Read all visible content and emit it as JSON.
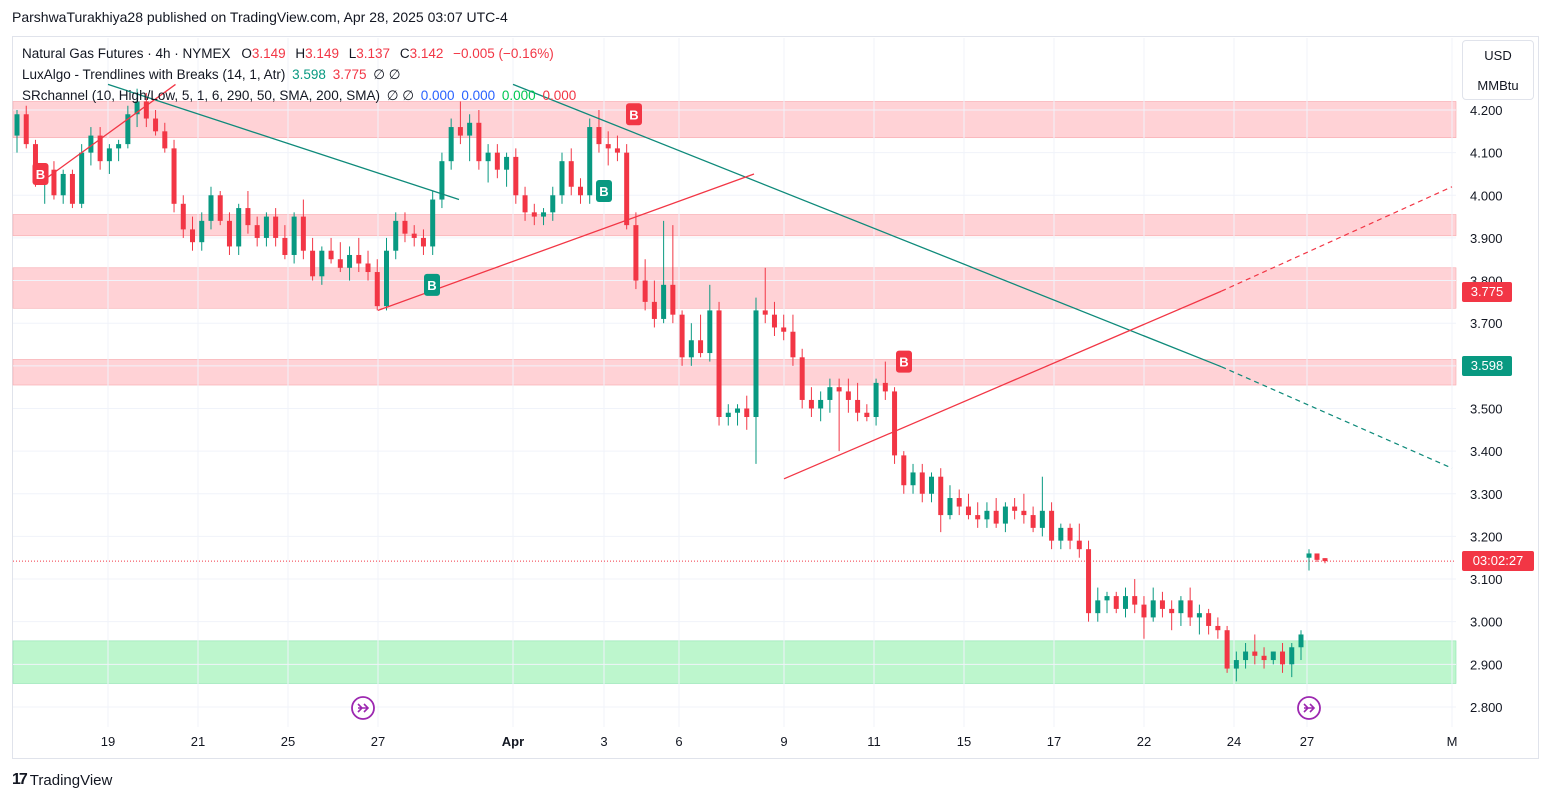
{
  "published": "ParshwaTurakhiya28 published on TradingView.com, Apr 28, 2025 03:07 UTC-4",
  "legend": {
    "symbol": "Natural Gas Futures · 4h · NYMEX",
    "o_label": "O",
    "o_value": "3.149",
    "h_label": "H",
    "h_value": "3.149",
    "l_label": "L",
    "l_value": "3.137",
    "c_label": "C",
    "c_value": "3.142",
    "change": "−0.005 (−0.16%)",
    "indicator1_name": "LuxAlgo - Trendlines with Breaks (14, 1, Atr)",
    "indicator1_v1": "3.598",
    "indicator1_v2": "3.775",
    "indicator1_v3": "∅ ∅",
    "indicator2_name": "SRchannel (10, High/Low, 5, 1, 6, 290, 50, SMA, 200, SMA)",
    "indicator2_v0": "∅ ∅",
    "indicator2_v1": "0.000",
    "indicator2_v2": "0.000",
    "indicator2_v3": "0.000",
    "indicator2_v4": "0.000"
  },
  "units": {
    "currency": "USD",
    "unit": "MMBtu"
  },
  "price_labels": {
    "res": "3.775",
    "sup": "3.598",
    "countdown": "03:02:27"
  },
  "footer": {
    "brand": "TradingView"
  },
  "colors": {
    "up": "#089981",
    "down": "#f23645",
    "resZone": "#ffcdd2",
    "supZone": "#b9f6ca"
  },
  "chart_data": {
    "type": "candlestick",
    "title": "Natural Gas Futures · 4h · NYMEX",
    "ylim": [
      2.75,
      4.25
    ],
    "y_ticks": [
      "4.200",
      "4.100",
      "4.000",
      "3.900",
      "3.800",
      "3.700",
      "3.600",
      "3.500",
      "3.400",
      "3.300",
      "3.200",
      "3.100",
      "3.000",
      "2.900",
      "2.800"
    ],
    "x_ticks": [
      "19",
      "21",
      "25",
      "27",
      "Apr",
      "3",
      "6",
      "9",
      "11",
      "15",
      "17",
      "22",
      "24",
      "27",
      "M"
    ],
    "current_price": 3.142,
    "resistance_zones": [
      [
        4.135,
        4.22
      ],
      [
        3.905,
        3.955
      ],
      [
        3.735,
        3.83
      ],
      [
        3.555,
        3.615
      ]
    ],
    "support_zones": [
      [
        2.855,
        2.955
      ]
    ],
    "trendlines_down": [
      {
        "from": [
          "Mar 19",
          4.26
        ],
        "to": [
          "Mar 30",
          3.99
        ]
      },
      {
        "from": [
          "Apr 1",
          4.26
        ],
        "to": [
          "Apr 24",
          3.598
        ],
        "extension_to": [
          "May 1",
          3.36
        ]
      }
    ],
    "trendlines_up": [
      {
        "from": [
          "Mar 17",
          4.03
        ],
        "to": [
          "Mar 21",
          4.26
        ]
      },
      {
        "from": [
          "Mar 27",
          3.73
        ],
        "to": [
          "Apr 8",
          4.05
        ]
      },
      {
        "from": [
          "Apr 9",
          3.335
        ],
        "to": [
          "Apr 24",
          3.775
        ],
        "extension_to": [
          "May 1",
          4.02
        ]
      }
    ],
    "break_signals": [
      {
        "label": "B",
        "date": "Mar 17",
        "price": 4.05,
        "kind": "bearish"
      },
      {
        "label": "B",
        "date": "Mar 29",
        "price": 3.79,
        "kind": "bullish"
      },
      {
        "label": "B",
        "date": "Apr 3",
        "price": 4.01,
        "kind": "bullish"
      },
      {
        "label": "B",
        "date": "Apr 4",
        "price": 4.19,
        "kind": "bearish"
      },
      {
        "label": "B",
        "date": "Apr 13",
        "price": 3.61,
        "kind": "bearish"
      }
    ],
    "ohlc": [
      [
        4.14,
        4.2,
        4.1,
        4.19
      ],
      [
        4.19,
        4.21,
        4.11,
        4.12
      ],
      [
        4.12,
        4.13,
        4.02,
        4.03
      ],
      [
        4.03,
        4.07,
        3.98,
        4.06
      ],
      [
        4.06,
        4.08,
        3.99,
        4.0
      ],
      [
        4.0,
        4.06,
        3.98,
        4.05
      ],
      [
        4.05,
        4.06,
        3.97,
        3.98
      ],
      [
        3.98,
        4.12,
        3.97,
        4.1
      ],
      [
        4.1,
        4.16,
        4.07,
        4.14
      ],
      [
        4.14,
        4.16,
        4.06,
        4.08
      ],
      [
        4.08,
        4.12,
        4.05,
        4.11
      ],
      [
        4.11,
        4.13,
        4.08,
        4.12
      ],
      [
        4.12,
        4.21,
        4.11,
        4.19
      ],
      [
        4.19,
        4.25,
        4.16,
        4.22
      ],
      [
        4.22,
        4.24,
        4.16,
        4.18
      ],
      [
        4.18,
        4.2,
        4.14,
        4.15
      ],
      [
        4.15,
        4.17,
        4.1,
        4.11
      ],
      [
        4.11,
        4.13,
        3.96,
        3.98
      ],
      [
        3.98,
        4.0,
        3.9,
        3.92
      ],
      [
        3.92,
        3.95,
        3.87,
        3.89
      ],
      [
        3.89,
        3.96,
        3.87,
        3.94
      ],
      [
        3.94,
        4.02,
        3.92,
        4.0
      ],
      [
        4.0,
        4.01,
        3.93,
        3.94
      ],
      [
        3.94,
        3.96,
        3.86,
        3.88
      ],
      [
        3.88,
        3.98,
        3.86,
        3.97
      ],
      [
        3.97,
        4.01,
        3.91,
        3.93
      ],
      [
        3.93,
        3.95,
        3.88,
        3.9
      ],
      [
        3.9,
        3.96,
        3.88,
        3.95
      ],
      [
        3.95,
        3.97,
        3.88,
        3.9
      ],
      [
        3.9,
        3.93,
        3.85,
        3.86
      ],
      [
        3.86,
        3.96,
        3.84,
        3.95
      ],
      [
        3.95,
        3.99,
        3.85,
        3.87
      ],
      [
        3.87,
        3.9,
        3.8,
        3.81
      ],
      [
        3.81,
        3.88,
        3.79,
        3.87
      ],
      [
        3.87,
        3.9,
        3.84,
        3.85
      ],
      [
        3.85,
        3.89,
        3.82,
        3.83
      ],
      [
        3.83,
        3.88,
        3.8,
        3.86
      ],
      [
        3.86,
        3.9,
        3.82,
        3.84
      ],
      [
        3.84,
        3.87,
        3.8,
        3.82
      ],
      [
        3.82,
        3.85,
        3.73,
        3.74
      ],
      [
        3.74,
        3.9,
        3.73,
        3.87
      ],
      [
        3.87,
        3.96,
        3.85,
        3.94
      ],
      [
        3.94,
        3.96,
        3.89,
        3.91
      ],
      [
        3.91,
        3.93,
        3.88,
        3.9
      ],
      [
        3.9,
        3.92,
        3.86,
        3.88
      ],
      [
        3.88,
        4.01,
        3.86,
        3.99
      ],
      [
        3.99,
        4.1,
        3.97,
        4.08
      ],
      [
        4.08,
        4.18,
        4.06,
        4.16
      ],
      [
        4.16,
        4.22,
        4.12,
        4.14
      ],
      [
        4.14,
        4.19,
        4.08,
        4.17
      ],
      [
        4.17,
        4.2,
        4.06,
        4.08
      ],
      [
        4.08,
        4.12,
        4.03,
        4.1
      ],
      [
        4.1,
        4.12,
        4.04,
        4.06
      ],
      [
        4.06,
        4.1,
        4.02,
        4.09
      ],
      [
        4.09,
        4.11,
        3.98,
        4.0
      ],
      [
        4.0,
        4.02,
        3.94,
        3.96
      ],
      [
        3.96,
        3.98,
        3.93,
        3.95
      ],
      [
        3.95,
        3.97,
        3.93,
        3.96
      ],
      [
        3.96,
        4.02,
        3.94,
        4.0
      ],
      [
        4.0,
        4.1,
        3.98,
        4.08
      ],
      [
        4.08,
        4.11,
        4.0,
        4.02
      ],
      [
        4.02,
        4.04,
        3.98,
        4.0
      ],
      [
        4.0,
        4.18,
        3.98,
        4.16
      ],
      [
        4.16,
        4.2,
        4.1,
        4.12
      ],
      [
        4.12,
        4.15,
        4.07,
        4.11
      ],
      [
        4.11,
        4.14,
        4.08,
        4.1
      ],
      [
        4.1,
        4.12,
        3.92,
        3.93
      ],
      [
        3.93,
        3.96,
        3.78,
        3.8
      ],
      [
        3.8,
        3.85,
        3.73,
        3.75
      ],
      [
        3.75,
        3.8,
        3.69,
        3.71
      ],
      [
        3.71,
        3.94,
        3.7,
        3.79
      ],
      [
        3.79,
        3.93,
        3.7,
        3.72
      ],
      [
        3.72,
        3.73,
        3.6,
        3.62
      ],
      [
        3.62,
        3.7,
        3.6,
        3.66
      ],
      [
        3.66,
        3.72,
        3.62,
        3.63
      ],
      [
        3.63,
        3.79,
        3.61,
        3.73
      ],
      [
        3.73,
        3.75,
        3.46,
        3.48
      ],
      [
        3.48,
        3.51,
        3.46,
        3.49
      ],
      [
        3.49,
        3.51,
        3.46,
        3.5
      ],
      [
        3.5,
        3.53,
        3.45,
        3.48
      ],
      [
        3.48,
        3.76,
        3.37,
        3.73
      ],
      [
        3.73,
        3.83,
        3.7,
        3.72
      ],
      [
        3.72,
        3.75,
        3.67,
        3.69
      ],
      [
        3.69,
        3.72,
        3.66,
        3.68
      ],
      [
        3.68,
        3.72,
        3.6,
        3.62
      ],
      [
        3.62,
        3.64,
        3.5,
        3.52
      ],
      [
        3.52,
        3.55,
        3.48,
        3.5
      ],
      [
        3.5,
        3.54,
        3.47,
        3.52
      ],
      [
        3.52,
        3.57,
        3.49,
        3.55
      ],
      [
        3.55,
        3.57,
        3.4,
        3.54
      ],
      [
        3.54,
        3.57,
        3.49,
        3.52
      ],
      [
        3.52,
        3.56,
        3.47,
        3.49
      ],
      [
        3.49,
        3.51,
        3.47,
        3.48
      ],
      [
        3.48,
        3.57,
        3.46,
        3.56
      ],
      [
        3.56,
        3.61,
        3.52,
        3.54
      ],
      [
        3.54,
        3.55,
        3.37,
        3.39
      ],
      [
        3.39,
        3.4,
        3.3,
        3.32
      ],
      [
        3.32,
        3.37,
        3.3,
        3.35
      ],
      [
        3.35,
        3.37,
        3.28,
        3.3
      ],
      [
        3.3,
        3.35,
        3.28,
        3.34
      ],
      [
        3.34,
        3.36,
        3.21,
        3.25
      ],
      [
        3.25,
        3.32,
        3.24,
        3.29
      ],
      [
        3.29,
        3.31,
        3.25,
        3.27
      ],
      [
        3.27,
        3.3,
        3.24,
        3.25
      ],
      [
        3.25,
        3.28,
        3.22,
        3.24
      ],
      [
        3.24,
        3.28,
        3.22,
        3.26
      ],
      [
        3.26,
        3.29,
        3.22,
        3.23
      ],
      [
        3.23,
        3.28,
        3.21,
        3.27
      ],
      [
        3.27,
        3.29,
        3.24,
        3.26
      ],
      [
        3.26,
        3.3,
        3.23,
        3.25
      ],
      [
        3.25,
        3.27,
        3.21,
        3.22
      ],
      [
        3.22,
        3.34,
        3.2,
        3.26
      ],
      [
        3.26,
        3.28,
        3.17,
        3.19
      ],
      [
        3.19,
        3.23,
        3.17,
        3.22
      ],
      [
        3.22,
        3.23,
        3.17,
        3.19
      ],
      [
        3.19,
        3.23,
        3.15,
        3.17
      ],
      [
        3.17,
        3.19,
        3.0,
        3.02
      ],
      [
        3.02,
        3.08,
        3.0,
        3.05
      ],
      [
        3.05,
        3.07,
        3.02,
        3.06
      ],
      [
        3.06,
        3.07,
        3.02,
        3.03
      ],
      [
        3.03,
        3.08,
        3.01,
        3.06
      ],
      [
        3.06,
        3.1,
        3.02,
        3.04
      ],
      [
        3.04,
        3.06,
        2.96,
        3.01
      ],
      [
        3.01,
        3.08,
        3.0,
        3.05
      ],
      [
        3.05,
        3.07,
        3.01,
        3.03
      ],
      [
        3.03,
        3.05,
        2.98,
        3.02
      ],
      [
        3.02,
        3.06,
        2.99,
        3.05
      ],
      [
        3.05,
        3.08,
        2.99,
        3.01
      ],
      [
        3.01,
        3.04,
        2.97,
        3.02
      ],
      [
        3.02,
        3.03,
        2.97,
        2.99
      ],
      [
        2.99,
        3.01,
        2.96,
        2.98
      ],
      [
        2.98,
        2.99,
        2.88,
        2.89
      ],
      [
        2.89,
        2.93,
        2.86,
        2.91
      ],
      [
        2.91,
        2.95,
        2.89,
        2.93
      ],
      [
        2.93,
        2.97,
        2.9,
        2.92
      ],
      [
        2.92,
        2.94,
        2.89,
        2.91
      ],
      [
        2.91,
        2.93,
        2.9,
        2.93
      ],
      [
        2.93,
        2.95,
        2.88,
        2.9
      ],
      [
        2.9,
        2.95,
        2.87,
        2.94
      ],
      [
        2.94,
        2.98,
        2.91,
        2.97
      ],
      [
        3.15,
        3.17,
        3.12,
        3.16
      ],
      [
        3.16,
        3.16,
        3.14,
        3.145
      ],
      [
        3.149,
        3.149,
        3.137,
        3.142
      ]
    ]
  }
}
